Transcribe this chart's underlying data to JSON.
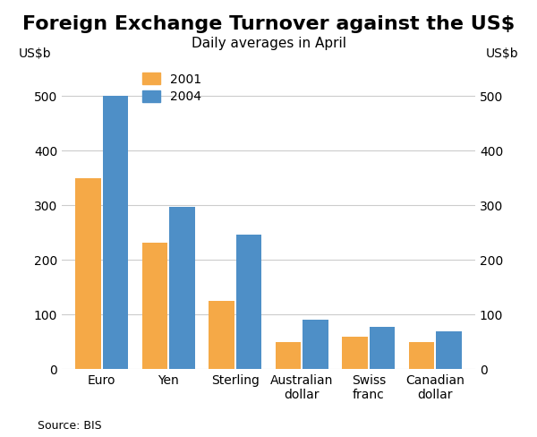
{
  "title": "Foreign Exchange Turnover against the US$",
  "subtitle": "Daily averages in April",
  "ylabel_left": "US$b",
  "ylabel_right": "US$b",
  "source": "Source: BIS",
  "categories": [
    "Euro",
    "Yen",
    "Sterling",
    "Australian\ndollar",
    "Swiss\nfranc",
    "Canadian\ndollar"
  ],
  "values_2001": [
    350,
    232,
    125,
    50,
    60,
    50
  ],
  "values_2004": [
    500,
    297,
    247,
    90,
    77,
    70
  ],
  "color_2001": "#F5A947",
  "color_2004": "#4E8FC7",
  "legend_labels": [
    "2001",
    "2004"
  ],
  "ylim": [
    0,
    560
  ],
  "yticks": [
    0,
    100,
    200,
    300,
    400,
    500
  ],
  "background_color": "#ffffff",
  "grid_color": "#cccccc",
  "title_fontsize": 16,
  "subtitle_fontsize": 11,
  "tick_fontsize": 10,
  "label_fontsize": 10,
  "source_fontsize": 9,
  "legend_fontsize": 10
}
